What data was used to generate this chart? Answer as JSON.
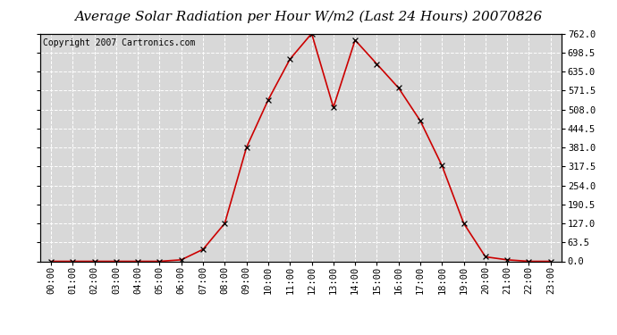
{
  "title": "Average Solar Radiation per Hour W/m2 (Last 24 Hours) 20070826",
  "copyright": "Copyright 2007 Cartronics.com",
  "hours": [
    "00:00",
    "01:00",
    "02:00",
    "03:00",
    "04:00",
    "05:00",
    "06:00",
    "07:00",
    "08:00",
    "09:00",
    "10:00",
    "11:00",
    "12:00",
    "13:00",
    "14:00",
    "15:00",
    "16:00",
    "17:00",
    "18:00",
    "19:00",
    "20:00",
    "21:00",
    "22:00",
    "23:00"
  ],
  "values": [
    0,
    0,
    0,
    0,
    0,
    0,
    5,
    40,
    127,
    381,
    540,
    676,
    762,
    515,
    740,
    660,
    580,
    470,
    320,
    127,
    15,
    5,
    0,
    0
  ],
  "line_color": "#cc0000",
  "marker": "x",
  "marker_color": "#000000",
  "bg_color": "#ffffff",
  "plot_bg_color": "#d8d8d8",
  "grid_color": "#ffffff",
  "ylim": [
    0,
    762
  ],
  "yticks": [
    0.0,
    63.5,
    127.0,
    190.5,
    254.0,
    317.5,
    381.0,
    444.5,
    508.0,
    571.5,
    635.0,
    698.5,
    762.0
  ],
  "title_fontsize": 11,
  "copyright_fontsize": 7,
  "tick_fontsize": 7.5
}
